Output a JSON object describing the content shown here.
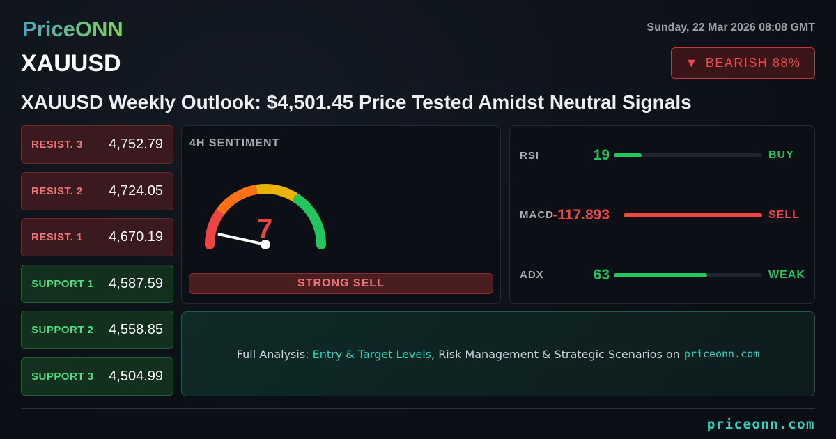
{
  "header": {
    "logo": "PriceONN",
    "datetime": "Sunday, 22 Mar 2026 08:08 GMT",
    "symbol": "XAUUSD",
    "badge": {
      "icon": "triangle-down-icon",
      "label": "BEARISH 88%"
    },
    "headline": "XAUUSD Weekly Outlook: $4,501.45 Price Tested Amidst Neutral Signals"
  },
  "levels": [
    {
      "label": "RESIST. 3",
      "value": "4,752.79",
      "type": "r"
    },
    {
      "label": "RESIST. 2",
      "value": "4,724.05",
      "type": "r"
    },
    {
      "label": "RESIST. 1",
      "value": "4,670.19",
      "type": "r"
    },
    {
      "label": "SUPPORT 1",
      "value": "4,587.59",
      "type": "s"
    },
    {
      "label": "SUPPORT 2",
      "value": "4,558.85",
      "type": "s"
    },
    {
      "label": "SUPPORT 3",
      "value": "4,504.99",
      "type": "s"
    }
  ],
  "sentiment": {
    "title": "4H SENTIMENT",
    "value": 7,
    "value_text": "7",
    "verdict": "STRONG SELL",
    "scale_max": 100
  },
  "indicators": [
    {
      "name": "RSI",
      "value": "19",
      "signal": "BUY",
      "fill_pct": 19,
      "color": "#22c55e"
    },
    {
      "name": "MACD",
      "value": "-117.893",
      "signal": "SELL",
      "fill_pct": 100,
      "color": "#ef4444"
    },
    {
      "name": "ADX",
      "value": "63",
      "signal": "WEAK",
      "fill_pct": 63,
      "color": "#22c55e"
    }
  ],
  "cta": {
    "prefix": "Full Analysis: ",
    "highlight": "Entry & Target Levels",
    "suffix": ", Risk Management & Strategic Scenarios on",
    "domain": "priceonn.com"
  },
  "footer": {
    "domain": "priceonn.com"
  },
  "colors": {
    "bearish": "#ef4444",
    "bullish": "#22c55e",
    "accent": "#2dd4bf"
  }
}
